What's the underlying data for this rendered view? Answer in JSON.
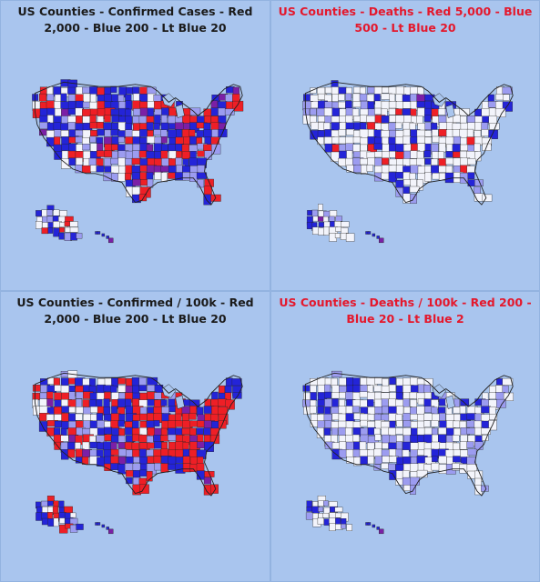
{
  "panels": [
    {
      "title": "US Counties - Confirmed Cases - Red 2,000 - Blue 200 - Lt Blue 20",
      "title_color": "black",
      "legend": {
        "red": "2,000",
        "blue": "200",
        "light_blue": "20"
      },
      "color_shares": {
        "red": 0.36,
        "blue": 0.34,
        "light_blue": 0.18,
        "white": 0.12
      },
      "seed": 11
    },
    {
      "title": "US Counties - Deaths - Red 5,000 - Blue 500 - Lt Blue 20",
      "title_color": "red",
      "legend": {
        "red": "5,000",
        "blue": "500",
        "light_blue": "20"
      },
      "color_shares": {
        "red": 0.05,
        "blue": 0.17,
        "light_blue": 0.16,
        "white": 0.62
      },
      "seed": 23
    },
    {
      "title": "US Counties - Confirmed / 100k - Red 2,000 - Blue 200 - Lt Blue 20",
      "title_color": "black",
      "legend": {
        "red": "2,000",
        "blue": "200",
        "light_blue": "20"
      },
      "color_shares": {
        "red": 0.47,
        "blue": 0.36,
        "light_blue": 0.1,
        "white": 0.07
      },
      "seed": 37
    },
    {
      "title": "US Counties - Deaths / 100k - Red 200 - Blue 20 - Lt Blue 2",
      "title_color": "red",
      "legend": {
        "red": "200",
        "blue": "20",
        "light_blue": "2"
      },
      "color_shares": {
        "red": 0.01,
        "blue": 0.19,
        "light_blue": 0.2,
        "white": 0.6
      },
      "seed": 53
    }
  ],
  "colors": {
    "red": "#ee1f26",
    "blue": "#2424d8",
    "light_blue": "#9c9cf0",
    "white": "#f3f4fb",
    "purple": "#7b1fa6",
    "border": "#222222",
    "background": "#a9c5ee"
  }
}
